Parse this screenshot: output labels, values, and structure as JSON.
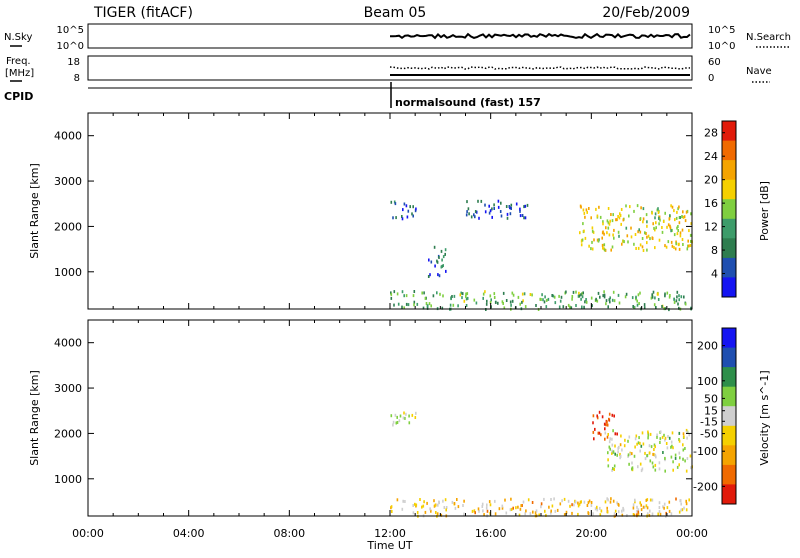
{
  "header": {
    "station": "TIGER (fitACF)",
    "beam": "Beam 05",
    "date": "20/Feb/2009"
  },
  "colors": {
    "power_scale": [
      "#1515f2",
      "#1f4fb0",
      "#2e7d4f",
      "#3d9c6a",
      "#7fcf40",
      "#f5d000",
      "#f5a400",
      "#f06a00",
      "#e11a0a"
    ],
    "velocity_scale": [
      "#1515f2",
      "#1f4fb0",
      "#2e8f4a",
      "#7fcf40",
      "#cfcfcf",
      "#f5d000",
      "#f5a400",
      "#f06a00",
      "#e11a0a"
    ],
    "trace": "#000000"
  },
  "top_panels": {
    "nsky": {
      "left_label": "N.Sky",
      "right_label": "N.Search",
      "left_ticks": [
        "10^5",
        "10^0"
      ],
      "right_ticks": [
        "10^5",
        "10^0"
      ]
    },
    "freq": {
      "left_label_1": "Freq.",
      "left_label_2": "[MHz]",
      "left_ticks": [
        "18",
        "8"
      ],
      "right_label": "Nave",
      "right_ticks": [
        "60",
        "0"
      ]
    },
    "cpid": {
      "label": "CPID",
      "mode_text": "normalsound (fast) 157"
    }
  },
  "chart_data": [
    {
      "type": "heatmap",
      "title": "",
      "xlabel": "",
      "ylabel": "Slant Range [km]",
      "x_ticks": [
        "00:00",
        "04:00",
        "08:00",
        "12:00",
        "16:00",
        "20:00",
        "00:00"
      ],
      "xlim_hours": [
        0,
        24
      ],
      "ylim": [
        180,
        4500
      ],
      "y_ticks": [
        1000,
        2000,
        3000,
        4000
      ],
      "colorbar_label": "Power [dB]",
      "colorbar_ticks": [
        4,
        8,
        12,
        16,
        20,
        24,
        28
      ],
      "colorbar_range": [
        0,
        30
      ],
      "data_start_hour": 12,
      "features": [
        {
          "name": "ground scatter band",
          "hours": [
            12,
            24
          ],
          "range_km": [
            200,
            600
          ],
          "value": 12
        },
        {
          "name": "range cluster",
          "hours": [
            12,
            13
          ],
          "range_km": [
            2200,
            2600
          ],
          "value": 6
        },
        {
          "name": "range cluster",
          "hours": [
            15,
            17.5
          ],
          "range_km": [
            2200,
            2600
          ],
          "value": 5
        },
        {
          "name": "range cluster",
          "hours": [
            13.5,
            14.2
          ],
          "range_km": [
            900,
            1600
          ],
          "value": 8
        },
        {
          "name": "echo band",
          "hours": [
            19.5,
            24
          ],
          "range_km": [
            1500,
            2500
          ],
          "value": 18
        }
      ]
    },
    {
      "type": "heatmap",
      "title": "",
      "xlabel": "Time UT",
      "ylabel": "Slant Range [km]",
      "x_ticks": [
        "00:00",
        "04:00",
        "08:00",
        "12:00",
        "16:00",
        "20:00",
        "00:00"
      ],
      "xlim_hours": [
        0,
        24
      ],
      "ylim": [
        180,
        4500
      ],
      "y_ticks": [
        1000,
        2000,
        3000,
        4000
      ],
      "colorbar_label": "Velocity [m s^-1]",
      "colorbar_ticks": [
        200,
        100,
        50,
        15,
        -15,
        -50,
        -100,
        -200
      ],
      "colorbar_range": [
        -250,
        250
      ],
      "data_start_hour": 12,
      "features": [
        {
          "name": "ground scatter band",
          "hours": [
            12,
            24
          ],
          "range_km": [
            200,
            600
          ],
          "value": -60
        },
        {
          "name": "range cluster",
          "hours": [
            12,
            13
          ],
          "range_km": [
            2200,
            2600
          ],
          "value": 0
        },
        {
          "name": "range cluster",
          "hours": [
            20,
            21
          ],
          "range_km": [
            1900,
            2500
          ],
          "value": -200
        },
        {
          "name": "echo band",
          "hours": [
            20.5,
            24
          ],
          "range_km": [
            1200,
            2100
          ],
          "value": 0
        }
      ]
    }
  ]
}
